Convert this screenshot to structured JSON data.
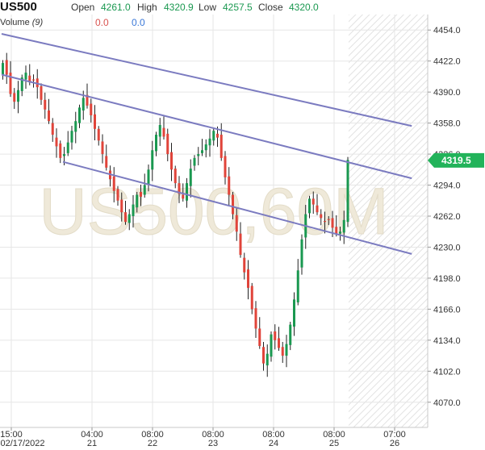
{
  "header": {
    "symbol": "US500",
    "open_label": "Open",
    "open_value": "4261.0",
    "high_label": "High",
    "high_value": "4320.9",
    "low_label": "Low",
    "low_value": "4257.5",
    "close_label": "Close",
    "close_value": "4320.0",
    "volume_label": "Volume",
    "volume_period": "(9)",
    "volume_a": "0.0",
    "volume_b": "0.0"
  },
  "watermark": "US500,60M",
  "price_tag": "4319.5",
  "colors": {
    "up": "#1a9850",
    "down": "#e0443a",
    "channel": "#7b7bc0",
    "grid": "#e6e6e6",
    "axis_text": "#333333",
    "tag_bg": "#22b35a"
  },
  "chart_data": {
    "type": "candlestick",
    "title": "",
    "xlabel": "",
    "ylabel": "",
    "ylim": [
      4044,
      4470
    ],
    "y_ticks": [
      "4454.0",
      "4422.0",
      "4390.0",
      "4358.0",
      "4326.0",
      "4294.0",
      "4262.0",
      "4230.0",
      "4198.0",
      "4166.0",
      "4134.0",
      "4102.0",
      "4070.0"
    ],
    "x_ticks": [
      {
        "time": "15:00",
        "date": "02/17/2022"
      },
      {
        "time": "04:00",
        "date": "21"
      },
      {
        "time": "08:00",
        "date": "22"
      },
      {
        "time": "08:00",
        "date": "23"
      },
      {
        "time": "08:00",
        "date": "24"
      },
      {
        "time": "08:00",
        "date": "25"
      },
      {
        "time": "07:00",
        "date": "26"
      }
    ],
    "closes": [
      4420,
      4408,
      4388,
      4380,
      4392,
      4405,
      4410,
      4400,
      4402,
      4395,
      4382,
      4372,
      4360,
      4346,
      4334,
      4322,
      4326,
      4338,
      4350,
      4360,
      4374,
      4384,
      4376,
      4366,
      4352,
      4340,
      4326,
      4312,
      4300,
      4288,
      4278,
      4266,
      4256,
      4264,
      4274,
      4284,
      4282,
      4294,
      4310,
      4330,
      4346,
      4356,
      4344,
      4326,
      4310,
      4296,
      4285,
      4280,
      4296,
      4311,
      4322,
      4326,
      4330,
      4336,
      4342,
      4350,
      4343,
      4322,
      4302,
      4284,
      4264,
      4246,
      4222,
      4204,
      4188,
      4166,
      4146,
      4128,
      4110,
      4120,
      4140,
      4134,
      4126,
      4118,
      4130,
      4150,
      4176,
      4206,
      4238,
      4264,
      4280,
      4274,
      4266,
      4260,
      4256,
      4258,
      4250,
      4244,
      4246,
      4258,
      4320
    ],
    "channel_lines": [
      {
        "name": "",
        "from": {
          "bar": 0,
          "price": 4450
        },
        "to": {
          "bar": 107,
          "price": 4355
        }
      },
      {
        "name": "",
        "from": {
          "bar": 0,
          "price": 4408
        },
        "to": {
          "bar": 107,
          "price": 4301
        }
      },
      {
        "name": "",
        "from": {
          "bar": 16,
          "price": 4318
        },
        "to": {
          "bar": 107,
          "price": 4223
        }
      }
    ]
  }
}
